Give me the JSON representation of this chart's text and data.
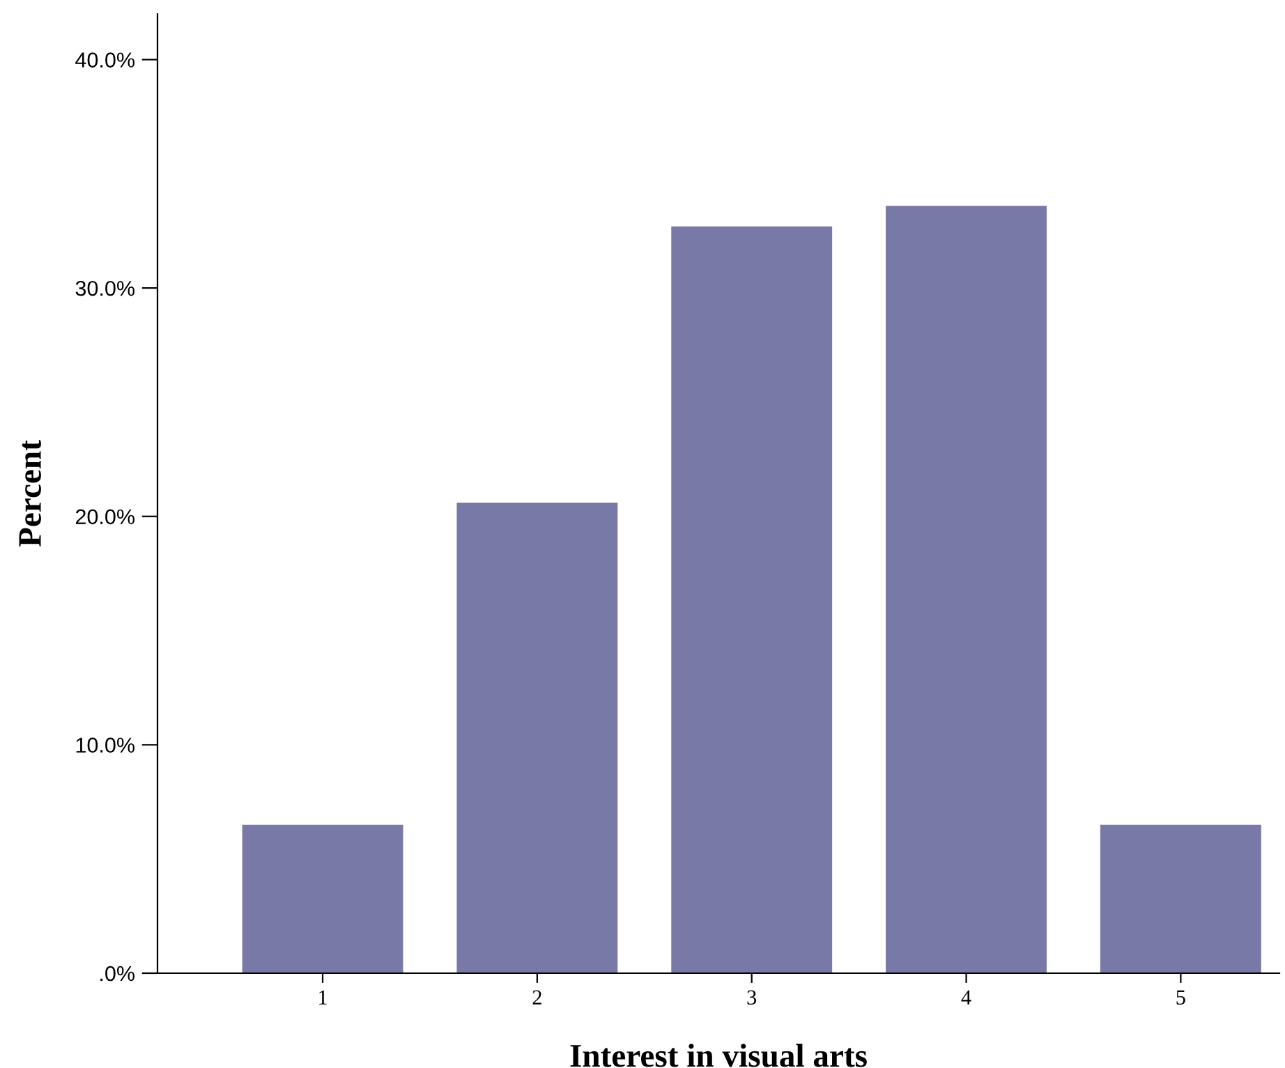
{
  "chart_data": {
    "type": "bar",
    "xlabel": "Interest in visual arts",
    "ylabel": "Percent",
    "categories": [
      "1",
      "2",
      "3",
      "4",
      "5"
    ],
    "values": [
      6.5,
      20.6,
      32.7,
      33.6,
      6.5
    ],
    "color": "#7879a7",
    "ylim": [
      0,
      42
    ],
    "yticks": [
      {
        "value": 0,
        "label": ".0%"
      },
      {
        "value": 10,
        "label": "10.0%"
      },
      {
        "value": 20,
        "label": "20.0%"
      },
      {
        "value": 30,
        "label": "30.0%"
      },
      {
        "value": 40,
        "label": "40.0%"
      }
    ],
    "grid": false,
    "legend": false
  }
}
